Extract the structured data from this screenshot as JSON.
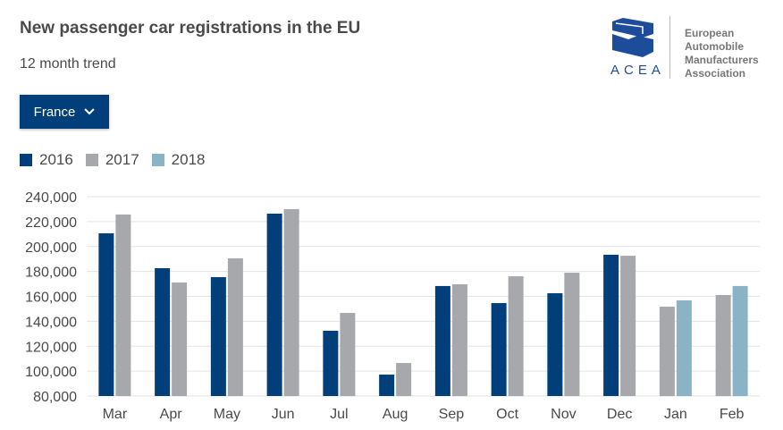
{
  "header": {
    "title": "New passenger car registrations in the EU",
    "subtitle": "12 month trend"
  },
  "dropdown": {
    "selected": "France"
  },
  "logo": {
    "acronym": "ACEA",
    "lines": [
      "European",
      "Automobile",
      "Manufacturers",
      "Association"
    ]
  },
  "chart_data": {
    "type": "bar",
    "title": "New passenger car registrations in the EU",
    "subtitle": "12 month trend",
    "xlabel": "",
    "ylabel": "",
    "ylim": [
      80000,
      240000
    ],
    "yticks": [
      80000,
      100000,
      120000,
      140000,
      160000,
      180000,
      200000,
      220000,
      240000
    ],
    "ytick_labels": [
      "80,000",
      "100,000",
      "120,000",
      "140,000",
      "160,000",
      "180,000",
      "200,000",
      "220,000",
      "240,000"
    ],
    "grid": true,
    "legend": "top-left",
    "categories": [
      "Mar",
      "Apr",
      "May",
      "Jun",
      "Jul",
      "Aug",
      "Sep",
      "Oct",
      "Nov",
      "Dec",
      "Jan",
      "Feb"
    ],
    "series": [
      {
        "name": "2016",
        "color": "#003f7a",
        "values": [
          210600,
          182600,
          175400,
          226400,
          132400,
          97200,
          168300,
          154600,
          162500,
          193400,
          null,
          null
        ]
      },
      {
        "name": "2017",
        "color": "#a7a8ab",
        "values": [
          225700,
          171100,
          190500,
          230000,
          146700,
          106500,
          169700,
          176100,
          179000,
          192600,
          151700,
          161100
        ]
      },
      {
        "name": "2018",
        "color": "#8ab4c6",
        "values": [
          null,
          null,
          null,
          null,
          null,
          null,
          null,
          null,
          null,
          null,
          156800,
          168300
        ]
      }
    ]
  }
}
